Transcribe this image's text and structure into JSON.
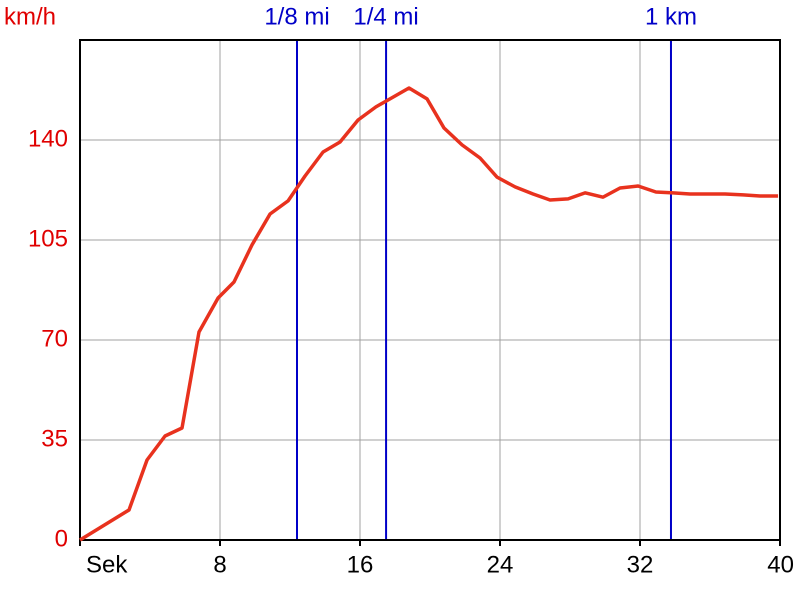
{
  "chart_data": {
    "type": "line",
    "y_label": "km/h",
    "x": [
      0,
      2.8,
      3.83,
      4.86,
      5.83,
      6.8,
      7.89,
      8.8,
      9.83,
      10.86,
      11.89,
      12.86,
      13.89,
      14.86,
      15.89,
      16.91,
      17.89,
      18.8,
      19.83,
      20.8,
      21.83,
      22.86,
      23.83,
      24.86,
      25.89,
      26.86,
      27.89,
      28.86,
      29.89,
      30.86,
      31.89,
      32.91,
      33.89,
      34.86,
      35.89,
      36.86,
      37.89,
      38.86,
      39.89
    ],
    "series": [
      {
        "color": "#e8321e",
        "values": [
          0,
          10.5,
          28,
          36.4,
          39.2,
          72.8,
          84.7,
          90.3,
          103.3,
          114.1,
          118.7,
          127.4,
          135.8,
          139.3,
          147,
          151.6,
          155,
          158.2,
          154.4,
          144.2,
          138.3,
          133.7,
          127,
          123.6,
          121.1,
          119,
          119.4,
          121.5,
          120,
          123.2,
          123.9,
          121.8,
          121.5,
          121.1,
          121.1,
          121.1,
          120.8,
          120.4,
          120.4
        ]
      }
    ],
    "xlim": [
      0,
      40
    ],
    "xticks": [
      {
        "value": 0,
        "label": "Sek"
      },
      8,
      16,
      24,
      32,
      40
    ],
    "ylim": [
      0,
      175
    ],
    "yticks": [
      0,
      35,
      70,
      105,
      140
    ],
    "grid": true,
    "y_tick_color": "#e00000",
    "marker_color": "#0000c8",
    "markers": [
      {
        "label": "1/8 mi",
        "x": 12.4
      },
      {
        "label": "1/4 mi",
        "x": 17.49
      },
      {
        "label": "1 km",
        "x": 33.77
      }
    ]
  }
}
